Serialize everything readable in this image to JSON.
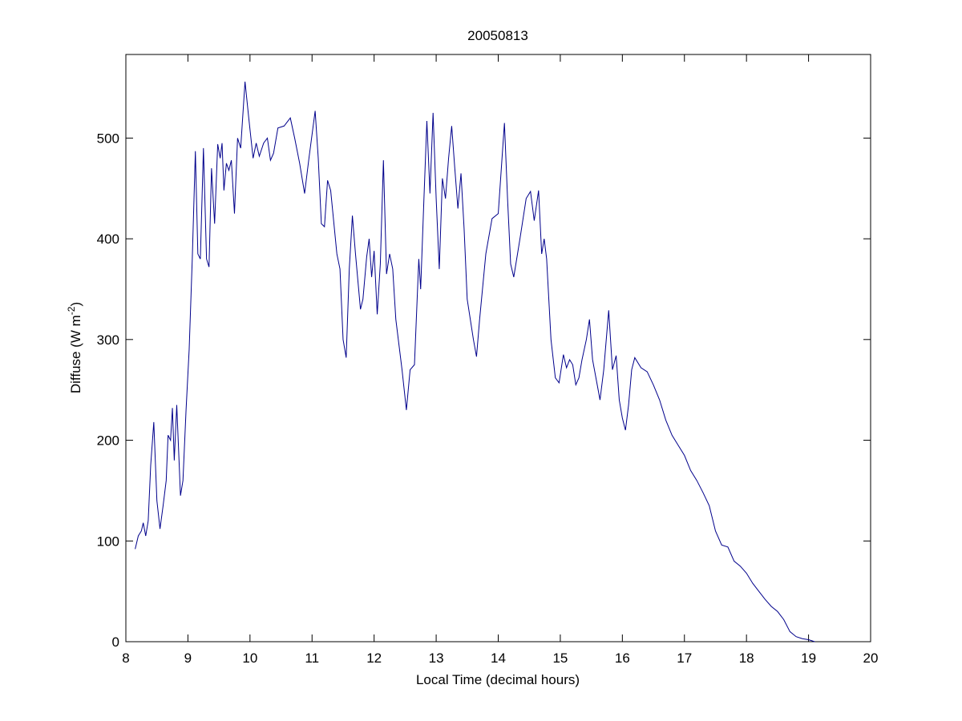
{
  "chart_data": {
    "type": "line",
    "title": "20050813",
    "x_label": "Local Time (decimal hours)",
    "y_label": [
      "Diffuse (W m",
      "-2",
      ")"
    ],
    "xlim": [
      8,
      20
    ],
    "xticks": [
      8,
      9,
      10,
      11,
      12,
      13,
      14,
      15,
      16,
      17,
      18,
      19,
      20
    ],
    "ylim": [
      0,
      583
    ],
    "yticks": [
      0,
      100,
      200,
      300,
      400,
      500
    ],
    "grid": false,
    "series": [
      {
        "color": "#00008b",
        "x": [
          8.15,
          8.2,
          8.25,
          8.28,
          8.32,
          8.36,
          8.4,
          8.45,
          8.5,
          8.55,
          8.6,
          8.65,
          8.68,
          8.72,
          8.75,
          8.78,
          8.82,
          8.88,
          8.92,
          8.97,
          9.02,
          9.07,
          9.12,
          9.16,
          9.2,
          9.25,
          9.3,
          9.34,
          9.38,
          9.43,
          9.48,
          9.52,
          9.55,
          9.58,
          9.62,
          9.66,
          9.7,
          9.75,
          9.8,
          9.85,
          9.92,
          9.98,
          10.05,
          10.1,
          10.15,
          10.22,
          10.28,
          10.33,
          10.38,
          10.45,
          10.55,
          10.65,
          10.72,
          10.8,
          10.88,
          10.95,
          11.05,
          11.1,
          11.15,
          11.2,
          11.25,
          11.3,
          11.4,
          11.45,
          11.5,
          11.55,
          11.6,
          11.65,
          11.7,
          11.78,
          11.82,
          11.88,
          11.92,
          11.96,
          12.0,
          12.05,
          12.1,
          12.15,
          12.2,
          12.25,
          12.3,
          12.35,
          12.45,
          12.52,
          12.58,
          12.65,
          12.72,
          12.75,
          12.8,
          12.85,
          12.9,
          12.95,
          13.0,
          13.05,
          13.1,
          13.15,
          13.2,
          13.25,
          13.3,
          13.35,
          13.4,
          13.45,
          13.5,
          13.6,
          13.65,
          13.7,
          13.8,
          13.9,
          14.0,
          14.05,
          14.1,
          14.15,
          14.2,
          14.25,
          14.35,
          14.45,
          14.52,
          14.58,
          14.65,
          14.7,
          14.74,
          14.78,
          14.85,
          14.92,
          14.98,
          15.05,
          15.1,
          15.15,
          15.2,
          15.25,
          15.3,
          15.35,
          15.42,
          15.47,
          15.52,
          15.58,
          15.64,
          15.7,
          15.78,
          15.84,
          15.9,
          15.95,
          16.0,
          16.05,
          16.1,
          16.15,
          16.2,
          16.3,
          16.4,
          16.5,
          16.6,
          16.7,
          16.8,
          16.9,
          17.0,
          17.1,
          17.2,
          17.3,
          17.4,
          17.5,
          17.6,
          17.7,
          17.8,
          17.9,
          18.0,
          18.1,
          18.2,
          18.3,
          18.4,
          18.5,
          18.6,
          18.7,
          18.8,
          18.9,
          19.0,
          19.1
        ],
        "values": [
          92,
          105,
          110,
          118,
          105,
          120,
          175,
          218,
          140,
          112,
          135,
          160,
          205,
          200,
          232,
          180,
          235,
          145,
          160,
          230,
          290,
          380,
          487,
          385,
          380,
          490,
          380,
          372,
          470,
          415,
          494,
          480,
          495,
          448,
          475,
          468,
          478,
          425,
          500,
          490,
          556,
          520,
          480,
          495,
          482,
          495,
          500,
          478,
          485,
          510,
          512,
          520,
          500,
          475,
          445,
          480,
          527,
          480,
          415,
          412,
          458,
          448,
          385,
          370,
          300,
          282,
          370,
          423,
          385,
          330,
          340,
          382,
          400,
          362,
          388,
          325,
          375,
          478,
          365,
          385,
          370,
          320,
          270,
          230,
          270,
          275,
          380,
          350,
          435,
          517,
          445,
          525,
          440,
          370,
          460,
          440,
          480,
          512,
          470,
          430,
          465,
          410,
          340,
          300,
          283,
          320,
          385,
          420,
          425,
          470,
          515,
          440,
          375,
          362,
          400,
          440,
          447,
          418,
          448,
          385,
          400,
          380,
          300,
          262,
          257,
          285,
          272,
          280,
          275,
          255,
          262,
          280,
          300,
          320,
          280,
          260,
          240,
          270,
          329,
          270,
          284,
          240,
          222,
          210,
          235,
          270,
          282,
          272,
          268,
          255,
          240,
          220,
          205,
          195,
          185,
          170,
          160,
          148,
          135,
          110,
          96,
          94,
          80,
          75,
          68,
          58,
          50,
          42,
          35,
          30,
          22,
          10,
          5,
          3,
          2,
          0
        ]
      }
    ]
  }
}
